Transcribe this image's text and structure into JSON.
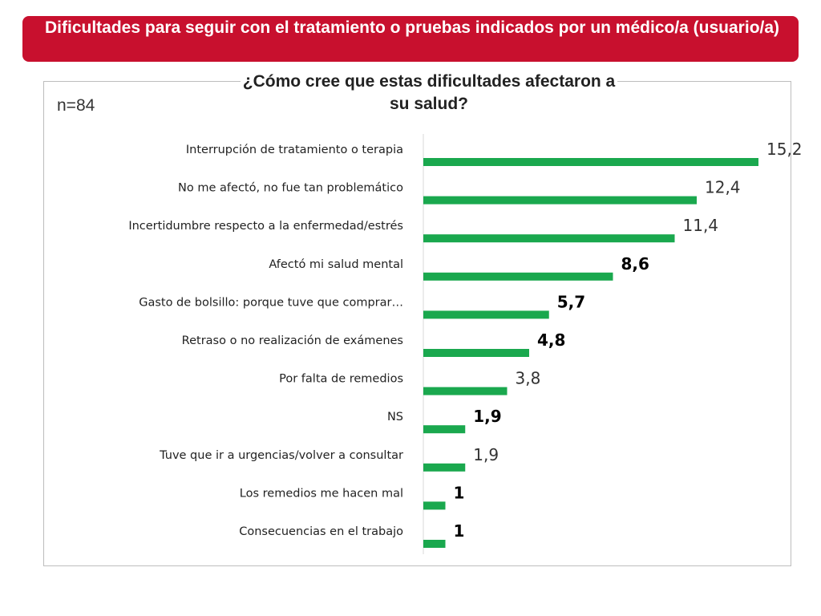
{
  "header": {
    "title": "Dificultades para seguir con el tratamiento o pruebas indicados por un médico/a (usuario/a)"
  },
  "chart": {
    "sample": "n=84",
    "question": "¿Cómo cree que estas dificultades afectaron a su salud?"
  },
  "colors": {
    "banner": "#c8102e",
    "bar": "#1aa84e"
  },
  "chart_data": {
    "type": "bar",
    "orientation": "horizontal",
    "categories": [
      "Interrupción de tratamiento o terapia",
      "No me afectó, no fue tan problemático",
      "Incertidumbre respecto a la enfermedad/estrés",
      "Afectó mi salud mental",
      "Gasto de bolsillo: porque tuve que comprar…",
      "Retraso o no realización de exámenes",
      "Por falta de remedios",
      "NS",
      "Tuve que ir a urgencias/volver a consultar",
      "Los remedios me hacen mal",
      "Consecuencias en el trabajo"
    ],
    "values": [
      15.2,
      12.4,
      11.4,
      8.6,
      5.7,
      4.8,
      3.8,
      1.9,
      1.9,
      1,
      1
    ],
    "value_labels": [
      "15,2",
      "12,4",
      "11,4",
      "8,6",
      "5,7",
      "4,8",
      "3,8",
      "1,9",
      "1,9",
      "1",
      "1"
    ],
    "bold_labels": [
      false,
      false,
      false,
      true,
      true,
      true,
      false,
      true,
      false,
      true,
      true
    ],
    "xlim": [
      0,
      16
    ],
    "grid": false,
    "legend": "none"
  }
}
